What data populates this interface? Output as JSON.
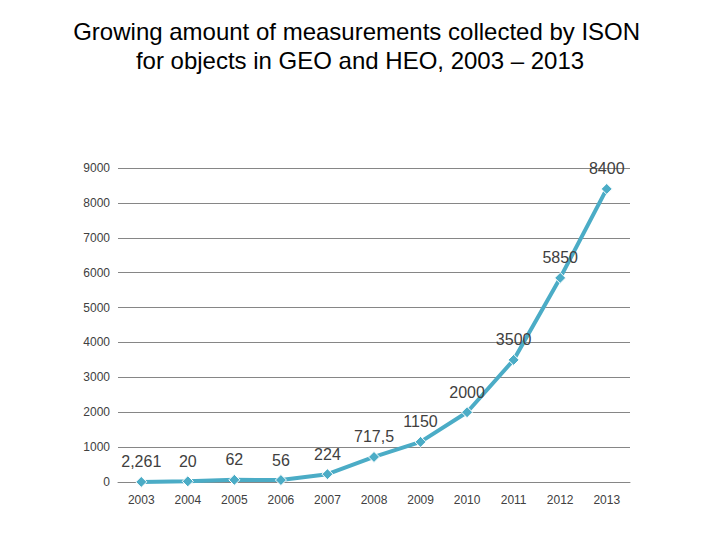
{
  "chart_data": {
    "type": "line",
    "title": "Growing amount of measurements collected by ISON for objects in GEO and HEO, 2003 – 2013",
    "categories": [
      "2003",
      "2004",
      "2005",
      "2006",
      "2007",
      "2008",
      "2009",
      "2010",
      "2011",
      "2012",
      "2013"
    ],
    "values": [
      2.261,
      20,
      62,
      56,
      224,
      717.5,
      1150,
      2000,
      3500,
      5850,
      8400
    ],
    "value_labels": [
      "2,261",
      "20",
      "62",
      "56",
      "224",
      "717,5",
      "1150",
      "2000",
      "3500",
      "5850",
      "8400"
    ],
    "color": "#4bacc6",
    "marker": "diamond",
    "line_style": "solid",
    "ylim": [
      0,
      9000
    ],
    "yticks": [
      0,
      1000,
      2000,
      3000,
      4000,
      5000,
      6000,
      7000,
      8000,
      9000
    ],
    "grid": true,
    "data_labels": true
  }
}
